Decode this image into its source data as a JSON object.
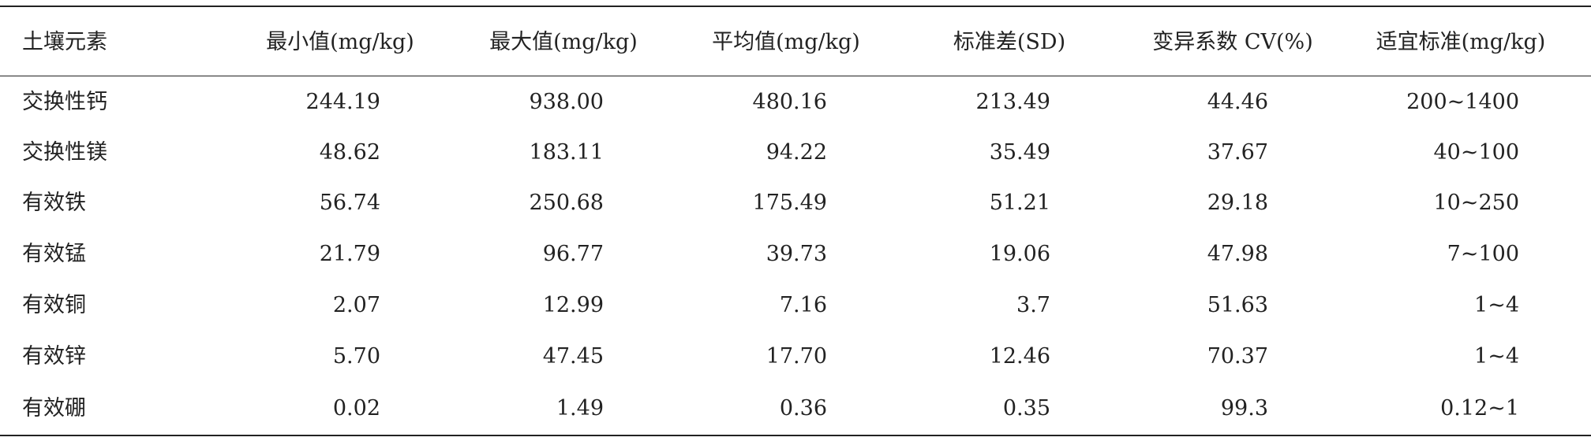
{
  "table": {
    "header": [
      "土壤元素",
      "最小值(mg/kg)",
      "最大值(mg/kg)",
      "平均值(mg/kg)",
      "标准差(SD)",
      "变异系数 CV(%)",
      "适宜标准(mg/kg)"
    ],
    "rows": [
      [
        "交换性钙",
        "244.19",
        "938.00",
        "480.16",
        "213.49",
        "44.46",
        "200~1400"
      ],
      [
        "交换性镁",
        "48.62",
        "183.11",
        "94.22",
        "35.49",
        "37.67",
        "40~100"
      ],
      [
        "有效铁",
        "56.74",
        "250.68",
        "175.49",
        "51.21",
        "29.18",
        "10~250"
      ],
      [
        "有效锰",
        "21.79",
        "96.77",
        "39.73",
        "19.06",
        "47.98",
        "7~100"
      ],
      [
        "有效铜",
        "2.07",
        "12.99",
        "7.16",
        "3.7",
        "51.63",
        "1~4"
      ],
      [
        "有效锌",
        "5.70",
        "47.45",
        "17.70",
        "12.46",
        "70.37",
        "1~4"
      ],
      [
        "有效硼",
        "0.02",
        "1.49",
        "0.36",
        "0.35",
        "99.3",
        "0.12~1"
      ]
    ]
  }
}
